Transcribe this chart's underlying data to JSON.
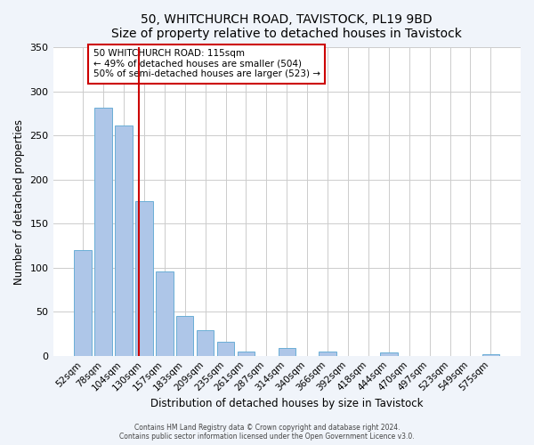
{
  "title": "50, WHITCHURCH ROAD, TAVISTOCK, PL19 9BD",
  "subtitle": "Size of property relative to detached houses in Tavistock",
  "xlabel": "Distribution of detached houses by size in Tavistock",
  "ylabel": "Number of detached properties",
  "bar_labels": [
    "52sqm",
    "78sqm",
    "104sqm",
    "130sqm",
    "157sqm",
    "183sqm",
    "209sqm",
    "235sqm",
    "261sqm",
    "287sqm",
    "314sqm",
    "340sqm",
    "366sqm",
    "392sqm",
    "418sqm",
    "444sqm",
    "470sqm",
    "497sqm",
    "523sqm",
    "549sqm",
    "575sqm"
  ],
  "bar_values": [
    120,
    282,
    261,
    176,
    96,
    45,
    29,
    16,
    5,
    0,
    9,
    0,
    5,
    0,
    0,
    4,
    0,
    0,
    0,
    0,
    2
  ],
  "bar_color": "#aec6e8",
  "bar_edge_color": "#6aaed6",
  "vline_x": 2.75,
  "vline_color": "#cc0000",
  "annotation_title": "50 WHITCHURCH ROAD: 115sqm",
  "annotation_line1": "← 49% of detached houses are smaller (504)",
  "annotation_line2": "50% of semi-detached houses are larger (523) →",
  "annotation_box_color": "#ffffff",
  "annotation_border_color": "#cc0000",
  "ylim": [
    0,
    350
  ],
  "yticks": [
    0,
    50,
    100,
    150,
    200,
    250,
    300,
    350
  ],
  "footer_line1": "Contains HM Land Registry data © Crown copyright and database right 2024.",
  "footer_line2": "Contains public sector information licensed under the Open Government Licence v3.0.",
  "bg_color": "#f0f4fa",
  "plot_bg_color": "#ffffff"
}
